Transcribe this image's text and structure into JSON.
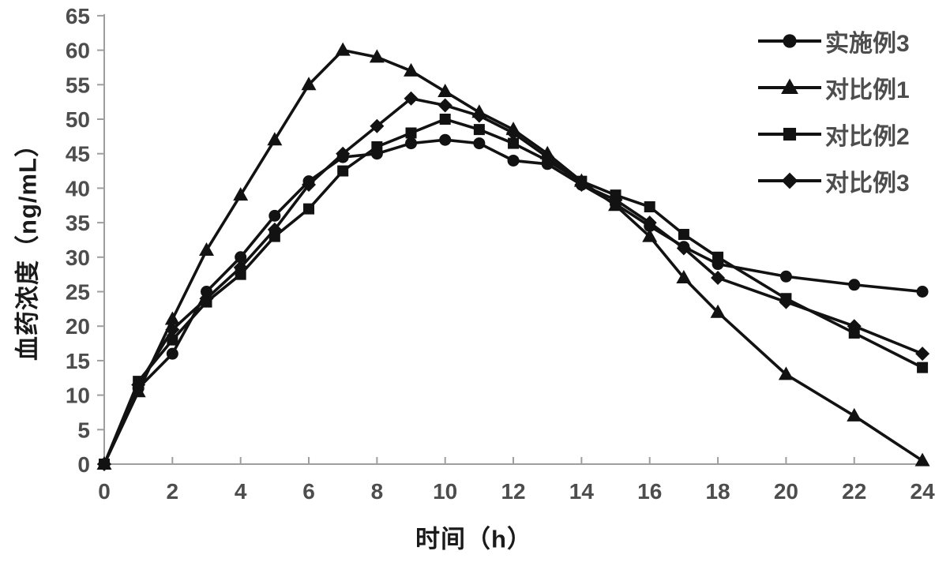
{
  "chart_data": {
    "type": "line",
    "title": "",
    "xlabel": "时间（h）",
    "ylabel": "血药浓度（ng/mL）",
    "xlim": [
      0,
      24
    ],
    "ylim": [
      0,
      65
    ],
    "xticks": [
      0,
      2,
      4,
      6,
      8,
      10,
      12,
      14,
      16,
      18,
      20,
      22,
      24
    ],
    "yticks": [
      0,
      5,
      10,
      15,
      20,
      25,
      30,
      35,
      40,
      45,
      50,
      55,
      60,
      65
    ],
    "grid": false,
    "legend_position": "top-right",
    "line_color": "#121212",
    "axis_color": "#9e9e9e",
    "tick_label_color": "#4d4d4d",
    "x": [
      0,
      1,
      2,
      3,
      4,
      5,
      6,
      7,
      8,
      9,
      10,
      11,
      12,
      13,
      14,
      15,
      16,
      17,
      18,
      20,
      22,
      24
    ],
    "series": [
      {
        "name": "实施例3",
        "marker": "circle",
        "values": [
          0,
          11,
          16,
          25,
          30,
          36,
          41,
          44.5,
          45,
          46.5,
          47,
          46.5,
          44,
          43.5,
          40.5,
          37.7,
          34.5,
          31.5,
          29,
          27.2,
          26,
          25
        ]
      },
      {
        "name": "对比例1",
        "marker": "triangle",
        "values": [
          0,
          10.5,
          21,
          31,
          39,
          47,
          55,
          60,
          59,
          57,
          54,
          51,
          48.5,
          45,
          41,
          37.5,
          33,
          27,
          22,
          13,
          7,
          0.5
        ]
      },
      {
        "name": "对比例2",
        "marker": "square",
        "values": [
          0,
          12,
          18,
          23.5,
          27.5,
          33,
          37,
          42.5,
          46,
          48,
          50,
          48.5,
          46.5,
          44,
          41,
          39,
          37.3,
          33.3,
          30,
          24,
          19,
          14
        ]
      },
      {
        "name": "对比例3",
        "marker": "diamond",
        "values": [
          0,
          11.5,
          19.5,
          24,
          28.5,
          34,
          40.5,
          45,
          49,
          53,
          52,
          50.5,
          48,
          44.5,
          40.5,
          38.3,
          35,
          31.3,
          27,
          23.5,
          20,
          16
        ]
      }
    ]
  }
}
